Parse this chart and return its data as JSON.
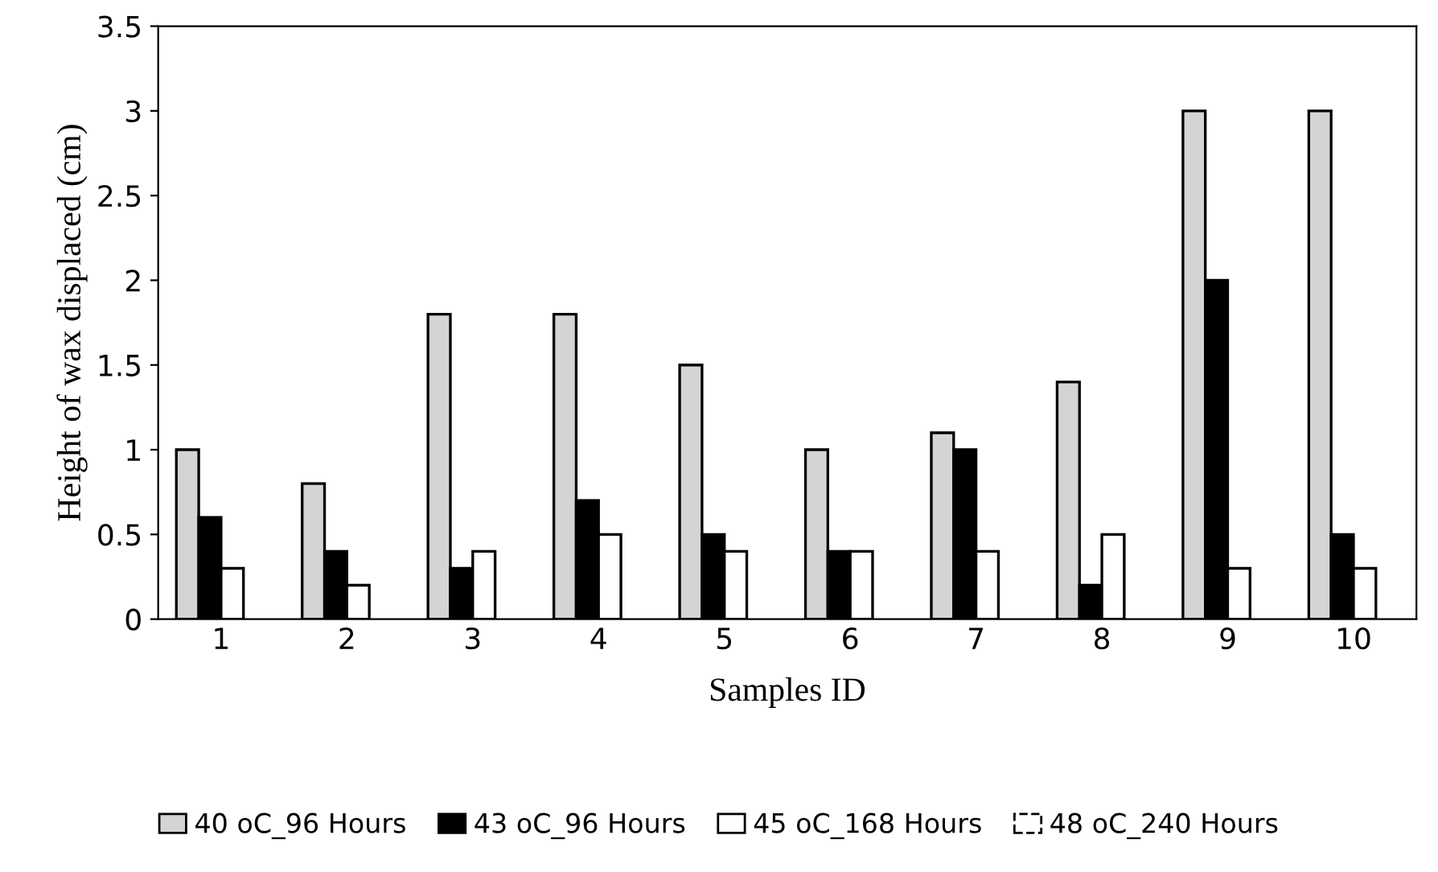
{
  "chart_data": {
    "type": "bar",
    "xlabel": "Samples ID",
    "ylabel": "Height of wax displaced (cm)",
    "categories": [
      "1",
      "2",
      "3",
      "4",
      "5",
      "6",
      "7",
      "8",
      "9",
      "10"
    ],
    "series": [
      {
        "name": "40 oC_96 Hours",
        "color": "#d4d4d4",
        "values": [
          1,
          0.8,
          1.8,
          1.8,
          1.5,
          1,
          1.1,
          1.4,
          3,
          3
        ]
      },
      {
        "name": "43 oC_96 Hours",
        "color": "#000000",
        "values": [
          0.6,
          0.4,
          0.3,
          0.7,
          0.5,
          0.4,
          1,
          0.2,
          2,
          0.5
        ]
      },
      {
        "name": "45 oC_168 Hours",
        "color": "#ffffff",
        "values": [
          0.3,
          0.2,
          0.4,
          0.5,
          0.4,
          0.4,
          0.4,
          0.5,
          0.3,
          0.3
        ]
      },
      {
        "name": "48 oC_240 Hours",
        "color": "#ffffff",
        "line_style": "dashed",
        "values": [
          null,
          null,
          null,
          null,
          null,
          null,
          null,
          null,
          null,
          null
        ]
      }
    ],
    "ylim": [
      0,
      3.5
    ],
    "yticks": [
      0,
      0.5,
      1,
      1.5,
      2,
      2.5,
      3,
      3.5
    ],
    "grid": false,
    "legend": "bottom"
  }
}
